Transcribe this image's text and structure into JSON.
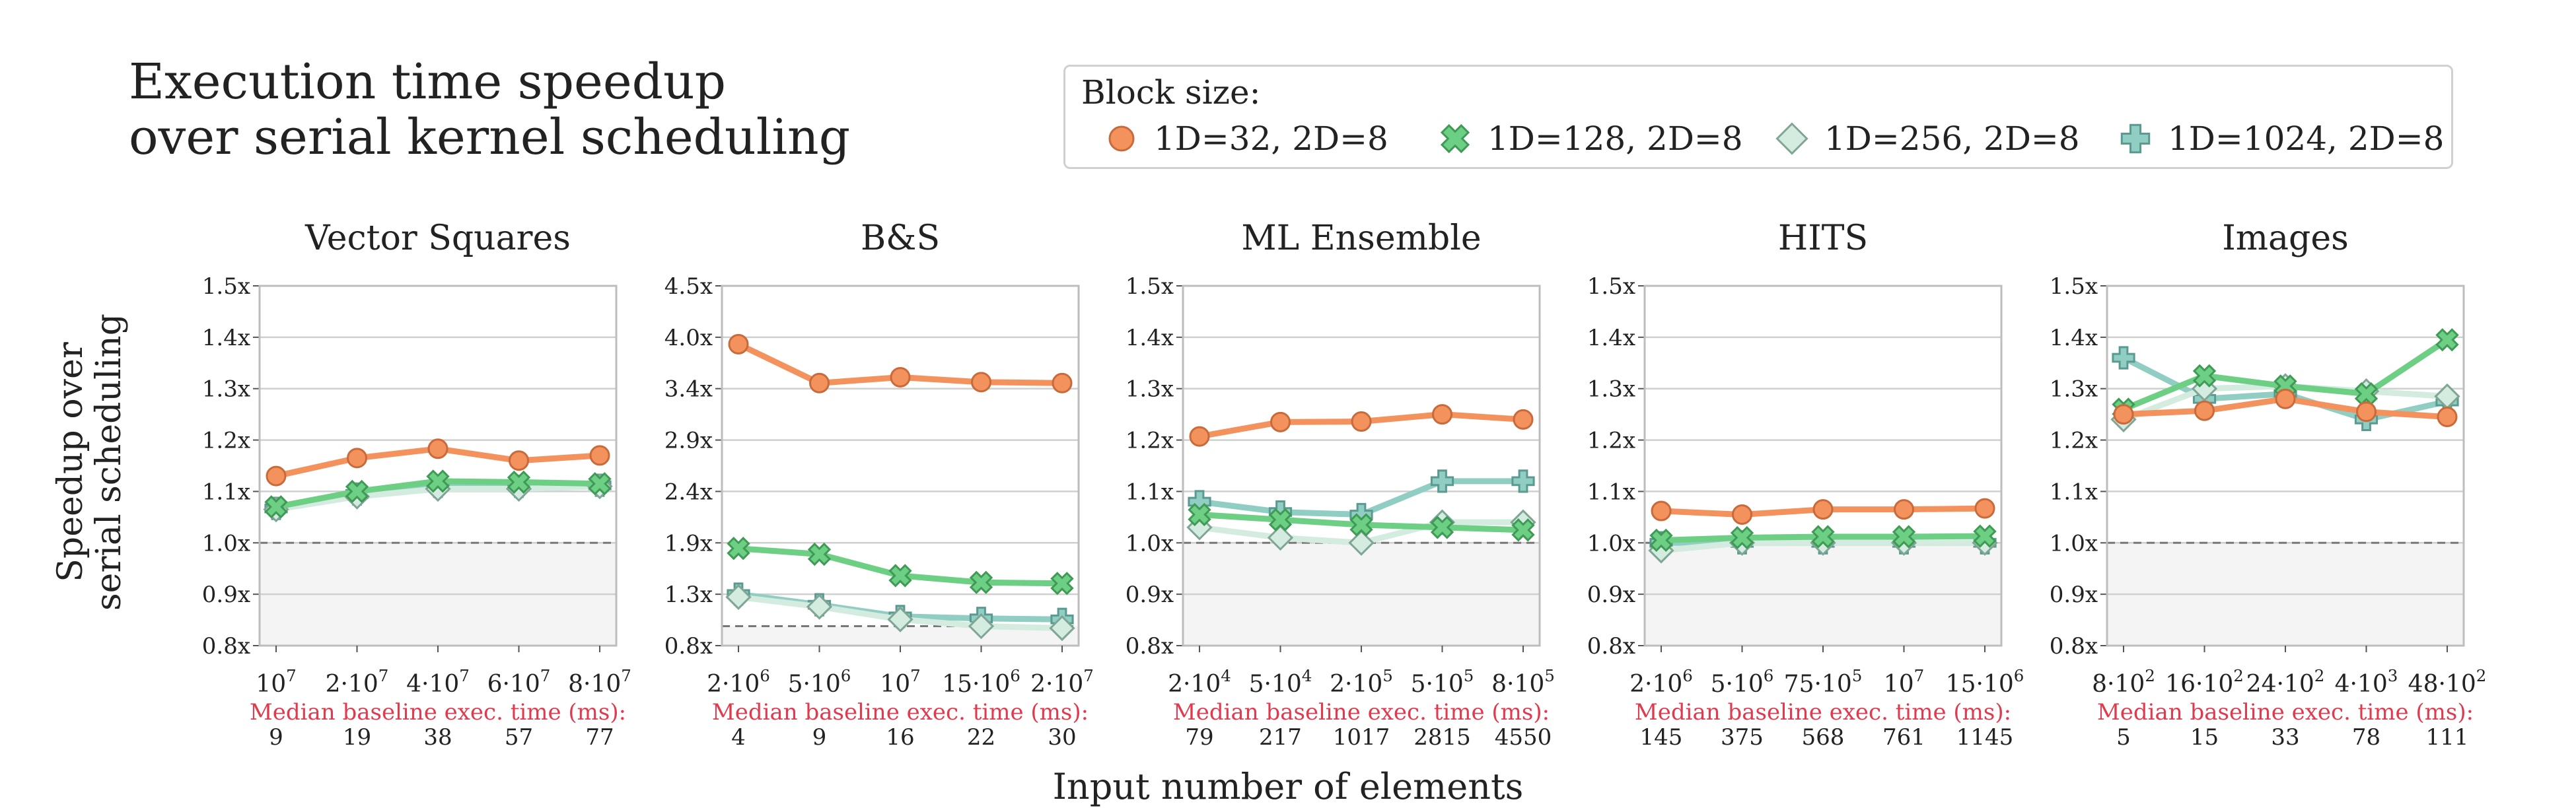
{
  "title": {
    "line1": "Execution time speedup",
    "line2": "over serial kernel scheduling"
  },
  "legend": {
    "title": "Block size:",
    "items": [
      {
        "label": "1D=32, 2D=8",
        "color": "#f4925e",
        "marker": "circle"
      },
      {
        "label": "1D=128, 2D=8",
        "color": "#6dcf84",
        "marker": "x"
      },
      {
        "label": "1D=256, 2D=8",
        "color": "#d4ebe0",
        "marker": "diamond"
      },
      {
        "label": "1D=1024, 2D=8",
        "color": "#90cdc3",
        "marker": "plus"
      }
    ]
  },
  "ylabel": {
    "line1": "Speedup over",
    "line2": "serial scheduling"
  },
  "xlabel": "Input number of elements",
  "baseline_label": "Median baseline exec. time (ms):",
  "chart_data": [
    {
      "type": "line",
      "title": "Vector Squares",
      "categories": [
        "10^7",
        "2·10^7",
        "4·10^7",
        "6·10^7",
        "8·10^7"
      ],
      "ylim": [
        0.8,
        1.5
      ],
      "yticks": [
        "0.8x",
        "0.9x",
        "1.0x",
        "1.1x",
        "1.2x",
        "1.3x",
        "1.4x",
        "1.5x"
      ],
      "baseline_y": 1.0,
      "baseline_ms": [
        "9",
        "19",
        "38",
        "57",
        "77"
      ],
      "series": [
        {
          "name": "1D=32, 2D=8",
          "values": [
            1.13,
            1.165,
            1.183,
            1.16,
            1.17
          ]
        },
        {
          "name": "1D=128, 2D=8",
          "values": [
            1.07,
            1.1,
            1.12,
            1.118,
            1.115
          ]
        },
        {
          "name": "1D=256, 2D=8",
          "values": [
            1.065,
            1.09,
            1.105,
            1.105,
            1.11
          ]
        },
        {
          "name": "1D=1024, 2D=8",
          "values": [
            1.067,
            1.095,
            1.11,
            1.11,
            1.112
          ]
        }
      ]
    },
    {
      "type": "line",
      "title": "B&S",
      "categories": [
        "2·10^6",
        "5·10^6",
        "10^7",
        "15·10^6",
        "2·10^7"
      ],
      "ylim": [
        0.8,
        4.5
      ],
      "yticks": [
        "0.8x",
        "1.3x",
        "1.9x",
        "2.4x",
        "2.9x",
        "3.4x",
        "4.0x",
        "4.5x"
      ],
      "baseline_y": 1.0,
      "baseline_ms": [
        "4",
        "9",
        "16",
        "22",
        "30"
      ],
      "series": [
        {
          "name": "1D=32, 2D=8",
          "values": [
            3.9,
            3.5,
            3.56,
            3.51,
            3.5
          ]
        },
        {
          "name": "1D=128, 2D=8",
          "values": [
            1.8,
            1.74,
            1.52,
            1.45,
            1.44
          ]
        },
        {
          "name": "1D=256, 2D=8",
          "values": [
            1.3,
            1.2,
            1.07,
            1.0,
            0.98
          ]
        },
        {
          "name": "1D=1024, 2D=8",
          "values": [
            1.33,
            1.22,
            1.1,
            1.08,
            1.07
          ]
        }
      ]
    },
    {
      "type": "line",
      "title": "ML Ensemble",
      "categories": [
        "2·10^4",
        "5·10^4",
        "2·10^5",
        "5·10^5",
        "8·10^5"
      ],
      "ylim": [
        0.8,
        1.5
      ],
      "yticks": [
        "0.8x",
        "0.9x",
        "1.0x",
        "1.1x",
        "1.2x",
        "1.3x",
        "1.4x",
        "1.5x"
      ],
      "baseline_y": 1.0,
      "baseline_ms": [
        "79",
        "217",
        "1017",
        "2815",
        "4550"
      ],
      "series": [
        {
          "name": "1D=32, 2D=8",
          "values": [
            1.207,
            1.235,
            1.236,
            1.25,
            1.24
          ]
        },
        {
          "name": "1D=128, 2D=8",
          "values": [
            1.055,
            1.045,
            1.035,
            1.03,
            1.025
          ]
        },
        {
          "name": "1D=256, 2D=8",
          "values": [
            1.03,
            1.01,
            1.0,
            1.04,
            1.04
          ]
        },
        {
          "name": "1D=1024, 2D=8",
          "values": [
            1.08,
            1.06,
            1.055,
            1.12,
            1.12
          ]
        }
      ]
    },
    {
      "type": "line",
      "title": "HITS",
      "categories": [
        "2·10^6",
        "5·10^6",
        "75·10^5",
        "10^7",
        "15·10^6"
      ],
      "ylim": [
        0.8,
        1.5
      ],
      "yticks": [
        "0.8x",
        "0.9x",
        "1.0x",
        "1.1x",
        "1.2x",
        "1.3x",
        "1.4x",
        "1.5x"
      ],
      "baseline_y": 1.0,
      "baseline_ms": [
        "145",
        "375",
        "568",
        "761",
        "1145"
      ],
      "series": [
        {
          "name": "1D=32, 2D=8",
          "values": [
            1.062,
            1.055,
            1.065,
            1.065,
            1.067
          ]
        },
        {
          "name": "1D=128, 2D=8",
          "values": [
            1.005,
            1.01,
            1.012,
            1.012,
            1.013
          ]
        },
        {
          "name": "1D=256, 2D=8",
          "values": [
            0.985,
            1.0,
            1.0,
            1.0,
            1.0
          ]
        },
        {
          "name": "1D=1024, 2D=8",
          "values": [
            1.0,
            1.0,
            1.0,
            1.0,
            1.0
          ]
        }
      ]
    },
    {
      "type": "line",
      "title": "Images",
      "categories": [
        "8·10^2",
        "16·10^2",
        "24·10^2",
        "4·10^3",
        "48·10^2"
      ],
      "ylim": [
        0.8,
        1.5
      ],
      "yticks": [
        "0.8x",
        "0.9x",
        "1.0x",
        "1.1x",
        "1.2x",
        "1.3x",
        "1.4x",
        "1.5x"
      ],
      "baseline_y": 1.0,
      "baseline_ms": [
        "5",
        "15",
        "33",
        "78",
        "111"
      ],
      "series": [
        {
          "name": "1D=32, 2D=8",
          "values": [
            1.25,
            1.257,
            1.28,
            1.255,
            1.245
          ]
        },
        {
          "name": "1D=128, 2D=8",
          "values": [
            1.26,
            1.325,
            1.305,
            1.29,
            1.395
          ]
        },
        {
          "name": "1D=256, 2D=8",
          "values": [
            1.24,
            1.3,
            1.305,
            1.295,
            1.285
          ]
        },
        {
          "name": "1D=1024, 2D=8",
          "values": [
            1.36,
            1.28,
            1.29,
            1.24,
            1.275
          ]
        }
      ]
    }
  ]
}
